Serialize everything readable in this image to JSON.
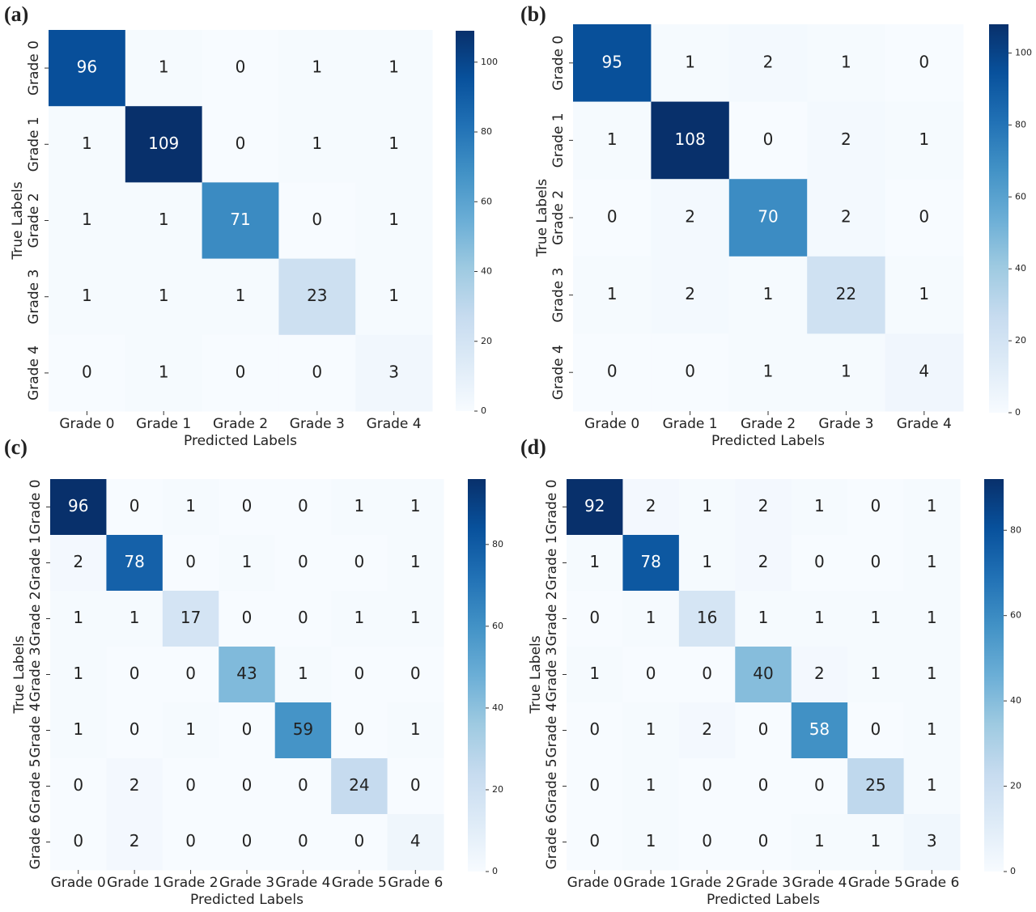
{
  "chart_data": [
    {
      "type": "heatmap",
      "panel_label": "(a)",
      "colormap": "Blues",
      "x_categories": [
        "Grade 0",
        "Grade 1",
        "Grade 2",
        "Grade 3",
        "Grade 4"
      ],
      "y_categories": [
        "Grade 0",
        "Grade 1",
        "Grade 2",
        "Grade 3",
        "Grade 4"
      ],
      "values": [
        [
          96,
          1,
          0,
          1,
          1
        ],
        [
          1,
          109,
          0,
          1,
          1
        ],
        [
          1,
          1,
          71,
          0,
          1
        ],
        [
          1,
          1,
          1,
          23,
          1
        ],
        [
          0,
          1,
          0,
          0,
          3
        ]
      ],
      "xlabel": "Predicted Labels",
      "ylabel": "True Labels",
      "clim": [
        0,
        109
      ],
      "cticks": [
        0,
        20,
        40,
        60,
        80,
        100
      ]
    },
    {
      "type": "heatmap",
      "panel_label": "(b)",
      "colormap": "Blues",
      "x_categories": [
        "Grade 0",
        "Grade 1",
        "Grade 2",
        "Grade 3",
        "Grade 4"
      ],
      "y_categories": [
        "Grade 0",
        "Grade 1",
        "Grade 2",
        "Grade 3",
        "Grade 4"
      ],
      "values": [
        [
          95,
          1,
          2,
          1,
          0
        ],
        [
          1,
          108,
          0,
          2,
          1
        ],
        [
          0,
          2,
          70,
          2,
          0
        ],
        [
          1,
          2,
          1,
          22,
          1
        ],
        [
          0,
          0,
          1,
          1,
          4
        ]
      ],
      "xlabel": "Predicted Labels",
      "ylabel": "True Labels",
      "clim": [
        0,
        108
      ],
      "cticks": [
        0,
        20,
        40,
        60,
        80,
        100
      ]
    },
    {
      "type": "heatmap",
      "panel_label": "(c)",
      "colormap": "Blues",
      "x_categories": [
        "Grade 0",
        "Grade 1",
        "Grade 2",
        "Grade 3",
        "Grade 4",
        "Grade 5",
        "Grade 6"
      ],
      "y_categories": [
        "Grade 0",
        "Grade 1",
        "Grade 2",
        "Grade 3",
        "Grade 4",
        "Grade 5",
        "Grade 6"
      ],
      "values": [
        [
          96,
          0,
          1,
          0,
          0,
          1,
          1
        ],
        [
          2,
          78,
          0,
          1,
          0,
          0,
          1
        ],
        [
          1,
          1,
          17,
          0,
          0,
          1,
          1
        ],
        [
          1,
          0,
          0,
          43,
          1,
          0,
          0
        ],
        [
          1,
          0,
          1,
          0,
          59,
          0,
          1
        ],
        [
          0,
          2,
          0,
          0,
          0,
          24,
          0
        ],
        [
          0,
          2,
          0,
          0,
          0,
          0,
          4
        ]
      ],
      "xlabel": "Predicted Labels",
      "ylabel": "True Labels",
      "clim": [
        0,
        96
      ],
      "cticks": [
        0,
        20,
        40,
        60,
        80
      ]
    },
    {
      "type": "heatmap",
      "panel_label": "(d)",
      "colormap": "Blues",
      "x_categories": [
        "Grade 0",
        "Grade 1",
        "Grade 2",
        "Grade 3",
        "Grade 4",
        "Grade 5",
        "Grade 6"
      ],
      "y_categories": [
        "Grade 0",
        "Grade 1",
        "Grade 2",
        "Grade 3",
        "Grade 4",
        "Grade 5",
        "Grade 6"
      ],
      "values": [
        [
          92,
          2,
          1,
          2,
          1,
          0,
          1
        ],
        [
          1,
          78,
          1,
          2,
          0,
          0,
          1
        ],
        [
          0,
          1,
          16,
          1,
          1,
          1,
          1
        ],
        [
          1,
          0,
          0,
          40,
          2,
          1,
          1
        ],
        [
          0,
          1,
          2,
          0,
          58,
          0,
          1
        ],
        [
          0,
          1,
          0,
          0,
          0,
          25,
          1
        ],
        [
          0,
          1,
          0,
          0,
          1,
          1,
          3
        ]
      ],
      "xlabel": "Predicted Labels",
      "ylabel": "True Labels",
      "clim": [
        0,
        92
      ],
      "cticks": [
        0,
        20,
        40,
        60,
        80
      ]
    }
  ]
}
